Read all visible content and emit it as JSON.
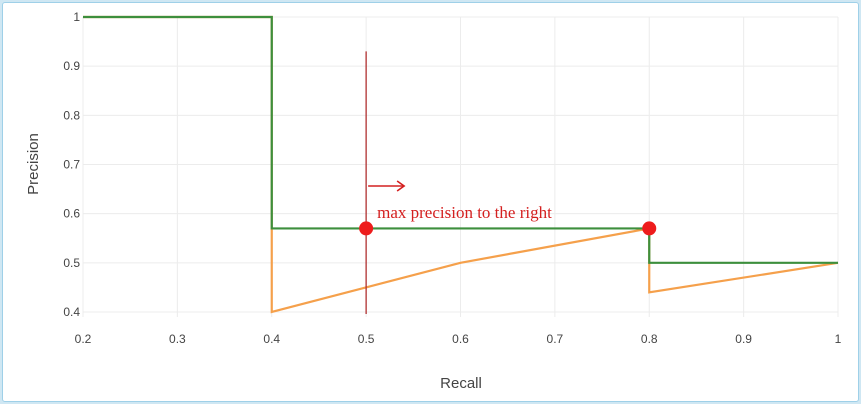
{
  "chart_data": {
    "type": "line",
    "xlabel": "Recall",
    "ylabel": "Precision",
    "xlim": [
      0.2,
      1.0
    ],
    "ylim": [
      0.38,
      1.0
    ],
    "grid": true,
    "x_ticks": [
      0.2,
      0.3,
      0.4,
      0.5,
      0.6,
      0.7,
      0.8,
      0.9,
      1
    ],
    "x_tick_labels": [
      "0.2",
      "0.3",
      "0.4",
      "0.5",
      "0.6",
      "0.7",
      "0.8",
      "0.9",
      "1"
    ],
    "y_ticks": [
      0.4,
      0.5,
      0.6,
      0.7,
      0.8,
      0.9,
      1
    ],
    "y_tick_labels": [
      "0.4",
      "0.5",
      "0.6",
      "0.7",
      "0.8",
      "0.9",
      "1"
    ],
    "series": [
      {
        "color": "#f5a04b",
        "points": [
          [
            0.2,
            1.0
          ],
          [
            0.4,
            1.0
          ],
          [
            0.4,
            0.4
          ],
          [
            0.6,
            0.5
          ],
          [
            0.8,
            0.57
          ],
          [
            0.8,
            0.44
          ],
          [
            1.0,
            0.5
          ]
        ]
      },
      {
        "color": "#3d8f3d",
        "points": [
          [
            0.2,
            1.0
          ],
          [
            0.4,
            1.0
          ],
          [
            0.4,
            0.57
          ],
          [
            0.8,
            0.57
          ],
          [
            0.8,
            0.5
          ],
          [
            1.0,
            0.5
          ]
        ]
      }
    ],
    "annotations": {
      "vertical_line_x": 0.5,
      "vertical_line_y_top": 0.93,
      "line_color": "#b03030",
      "points": [
        [
          0.5,
          0.57
        ],
        [
          0.8,
          0.57
        ]
      ],
      "point_color": "#ee1c1c",
      "text": "max precision to the right",
      "text_color": "#d42020",
      "arrow_direction": "right"
    }
  }
}
